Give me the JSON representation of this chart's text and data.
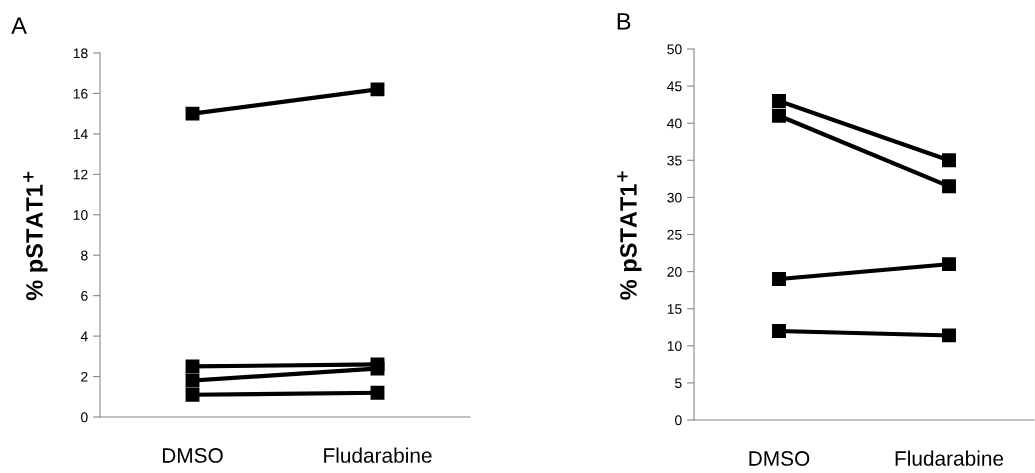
{
  "chart_data": [
    {
      "type": "line",
      "title": "A",
      "ylabel": "% pSTAT1$^{+}$",
      "categories": [
        "DMSO",
        "Fludarabine"
      ],
      "ylim": [
        0,
        18
      ],
      "yticks": [
        0,
        2,
        4,
        6,
        8,
        10,
        12,
        14,
        16,
        18
      ],
      "marker": "square",
      "line_style": "solid",
      "grid": false,
      "legend": false,
      "series": [
        {
          "color": "#000000",
          "values": [
            15,
            16.2
          ]
        },
        {
          "color": "#000000",
          "values": [
            2.5,
            2.6
          ]
        },
        {
          "color": "#000000",
          "values": [
            1.8,
            2.4
          ]
        },
        {
          "color": "#000000",
          "values": [
            1.1,
            1.2
          ]
        }
      ]
    },
    {
      "type": "line",
      "title": "B",
      "ylabel": "% pSTAT1$^{+}$",
      "categories": [
        "DMSO",
        "Fludarabine"
      ],
      "ylim": [
        0,
        50
      ],
      "yticks": [
        0,
        5,
        10,
        15,
        20,
        25,
        30,
        35,
        40,
        45,
        50
      ],
      "marker": "square",
      "line_style": "solid",
      "grid": false,
      "legend": false,
      "series": [
        {
          "color": "#000000",
          "values": [
            43,
            35
          ]
        },
        {
          "color": "#000000",
          "values": [
            41,
            31.5
          ]
        },
        {
          "color": "#000000",
          "values": [
            19,
            21
          ]
        },
        {
          "color": "#000000",
          "values": [
            12,
            11.4
          ]
        }
      ]
    }
  ]
}
